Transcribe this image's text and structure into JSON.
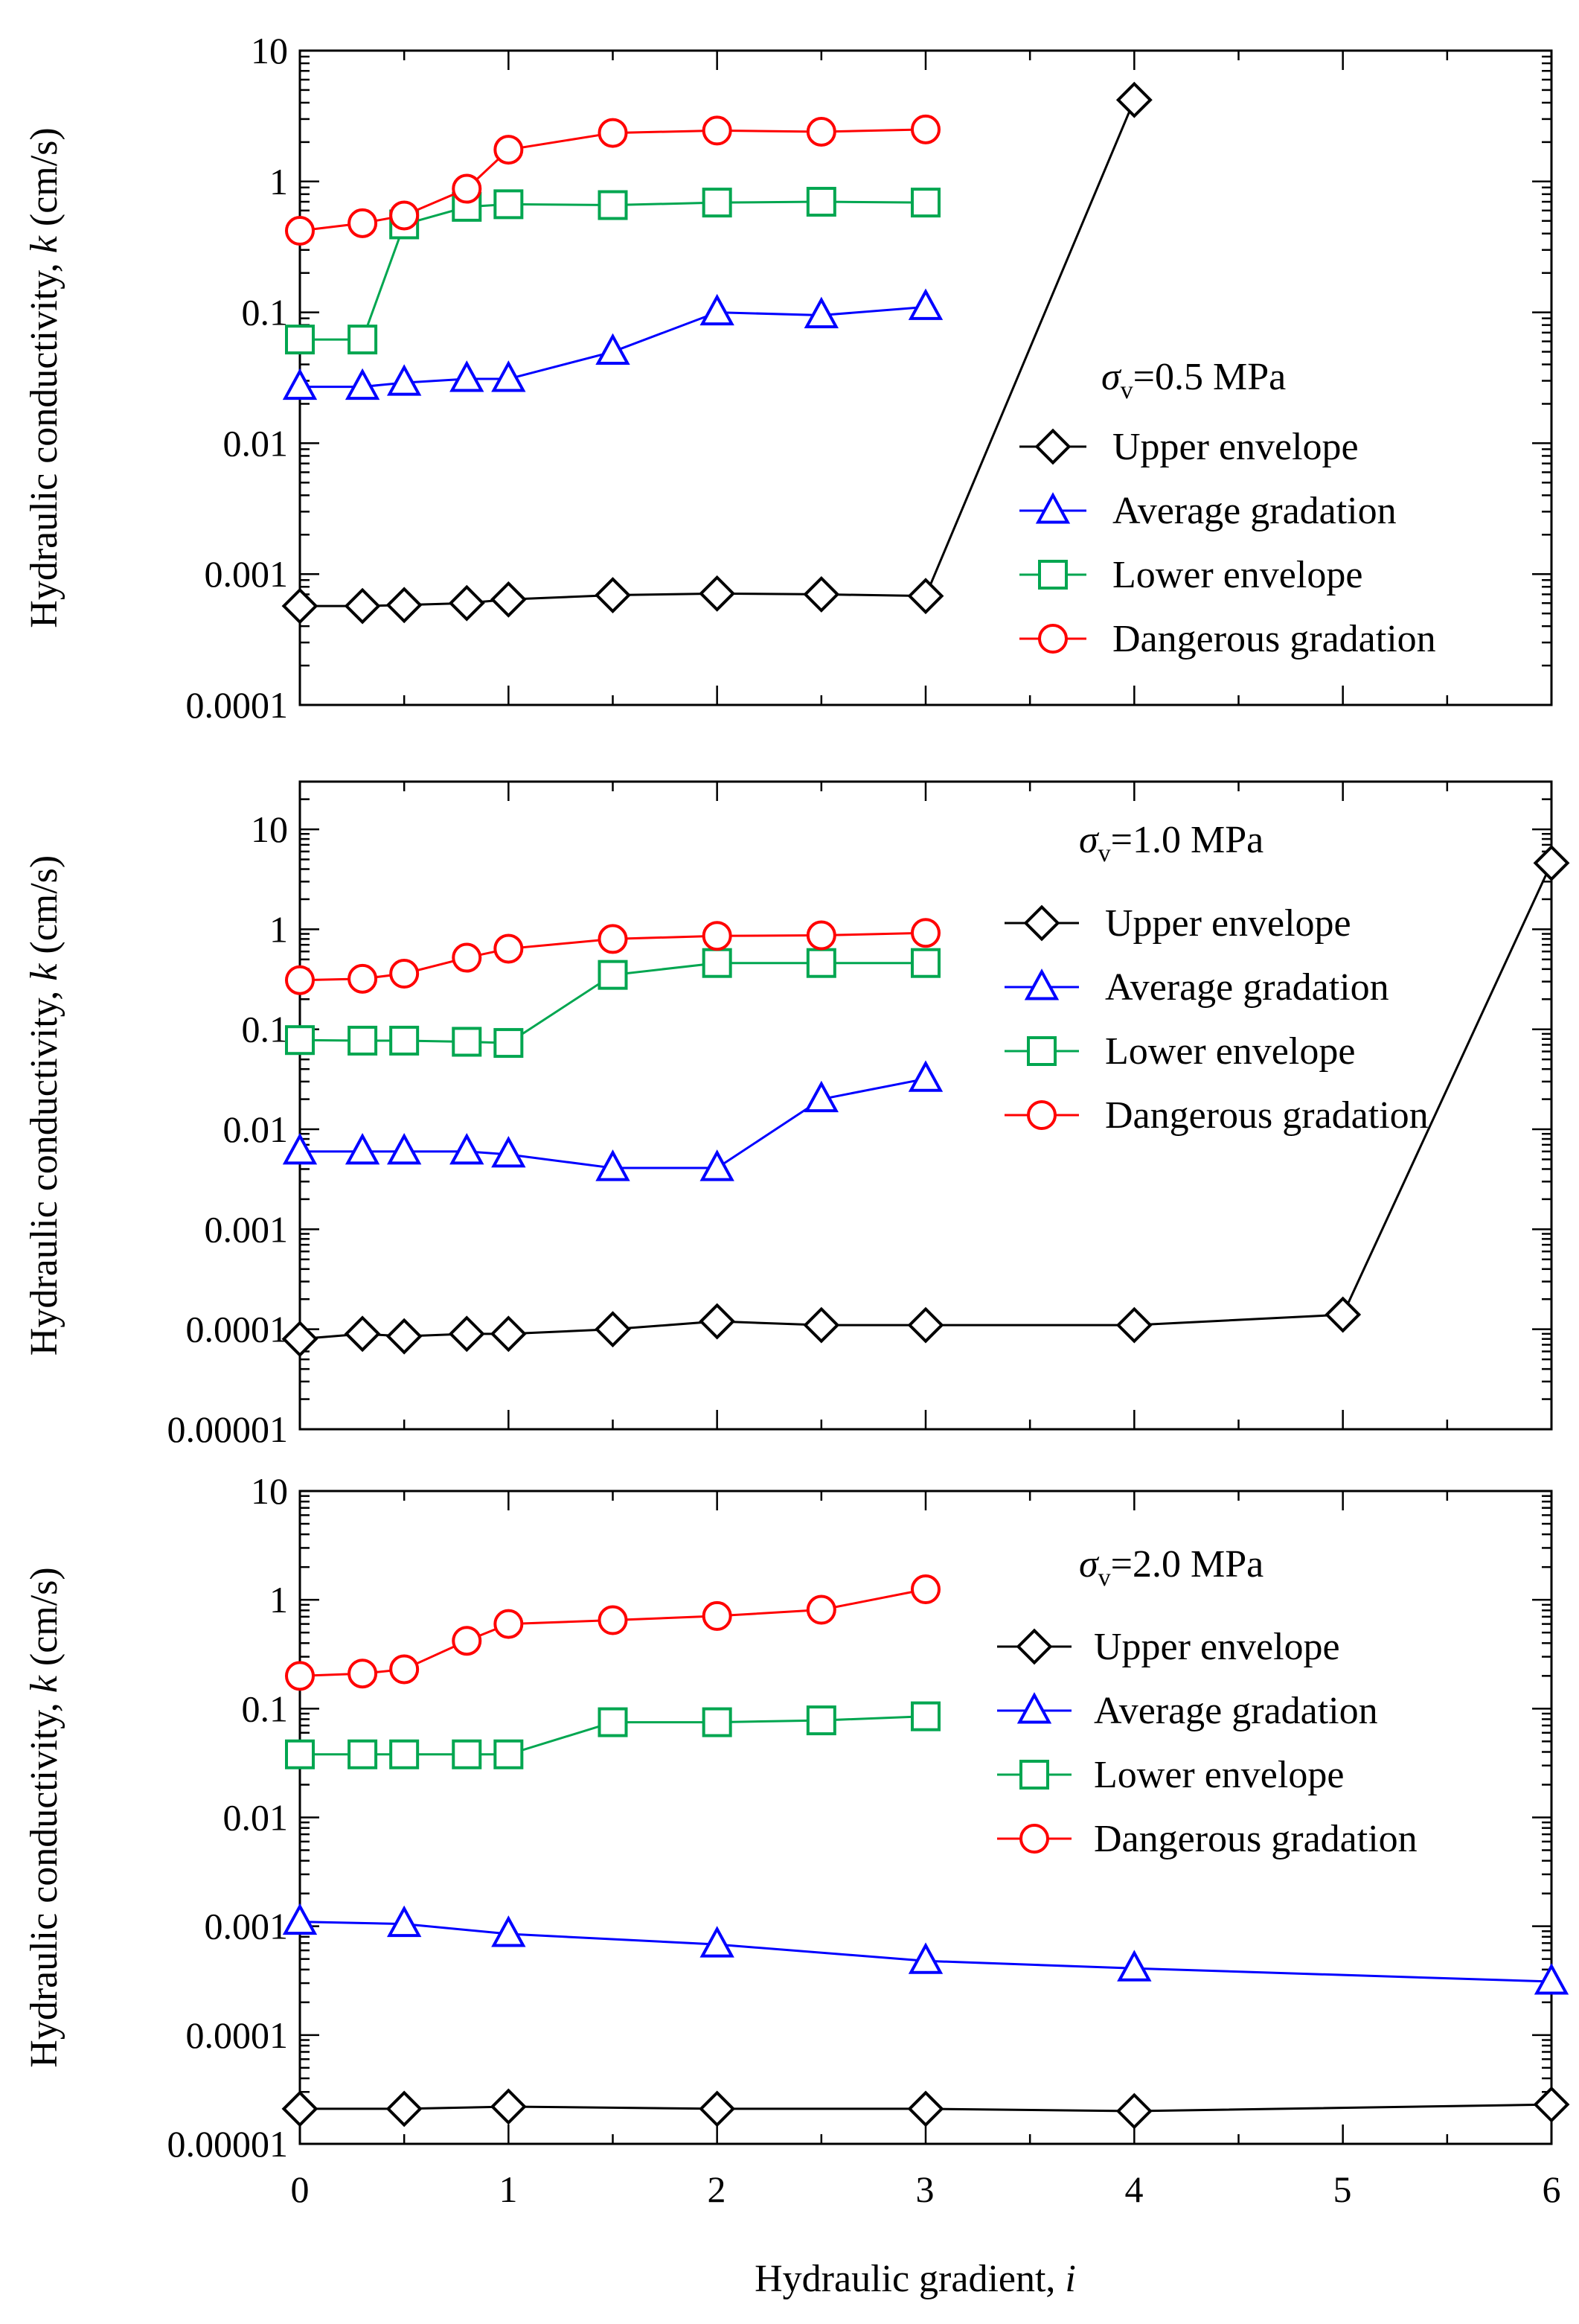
{
  "x_axis": {
    "label_prefix": "Hydraulic gradient, ",
    "label_var": "i",
    "ticks": [
      "0",
      "1",
      "2",
      "3",
      "4",
      "5",
      "6"
    ]
  },
  "legend_labels": {
    "upper": "Upper envelope",
    "average": "Average gradation",
    "lower": "Lower envelope",
    "dangerous": "Dangerous gradation"
  },
  "series_styles": {
    "upper": {
      "color": "#000000",
      "marker": "diamond"
    },
    "average": {
      "color": "#0000ff",
      "marker": "triangle"
    },
    "lower": {
      "color": "#00a650",
      "marker": "square"
    },
    "dangerous": {
      "color": "#ff0000",
      "marker": "circle"
    }
  },
  "chart_data": [
    {
      "type": "line",
      "title": "σv=0.5 MPa",
      "stress_label": "=0.5 MPa",
      "ylabel": "Hydraulic conductivity, k (cm/s)",
      "xlabel": "Hydraulic gradient, i",
      "xlim": [
        0,
        6
      ],
      "ylim": [
        0.0001,
        10
      ],
      "yscale": "log",
      "ytick_labels": [
        "0.0001",
        "0.001",
        "0.01",
        "0.1",
        "1",
        "10"
      ],
      "legend": "right",
      "series": [
        {
          "key": "upper",
          "name": "Upper envelope",
          "x": [
            0,
            0.3,
            0.5,
            0.8,
            1,
            1.5,
            2,
            2.5,
            3,
            4
          ],
          "y": [
            0.00057,
            0.00057,
            0.00058,
            0.0006,
            0.00064,
            0.00069,
            0.00071,
            0.0007,
            0.00068,
            4.2
          ]
        },
        {
          "key": "average",
          "name": "Average gradation",
          "x": [
            0,
            0.3,
            0.5,
            0.8,
            1,
            1.5,
            2,
            2.5,
            3
          ],
          "y": [
            0.027,
            0.027,
            0.029,
            0.031,
            0.031,
            0.05,
            0.1,
            0.095,
            0.11
          ]
        },
        {
          "key": "lower",
          "name": "Lower envelope",
          "x": [
            0,
            0.3,
            0.5,
            0.8,
            1,
            1.5,
            2,
            2.5,
            3
          ],
          "y": [
            0.062,
            0.062,
            0.47,
            0.64,
            0.67,
            0.66,
            0.69,
            0.7,
            0.69
          ]
        },
        {
          "key": "dangerous",
          "name": "Dangerous gradation",
          "x": [
            0,
            0.3,
            0.5,
            0.8,
            1,
            1.5,
            2,
            2.5,
            3
          ],
          "y": [
            0.42,
            0.48,
            0.55,
            0.88,
            1.75,
            2.35,
            2.45,
            2.4,
            2.5
          ]
        }
      ]
    },
    {
      "type": "line",
      "title": "σv=1.0 MPa",
      "stress_label": "=1.0 MPa",
      "ylabel": "Hydraulic conductivity, k (cm/s)",
      "xlabel": "Hydraulic gradient, i",
      "xlim": [
        0,
        6
      ],
      "ylim": [
        1e-05,
        30
      ],
      "yscale": "log",
      "ytick_labels": [
        "0.00001",
        "0.0001",
        "0.001",
        "0.01",
        "0.1",
        "1",
        "10"
      ],
      "legend": "top-right",
      "series": [
        {
          "key": "upper",
          "name": "Upper envelope",
          "x": [
            0,
            0.3,
            0.5,
            0.8,
            1,
            1.5,
            2,
            2.5,
            3,
            4,
            5,
            6
          ],
          "y": [
            8e-05,
            9e-05,
            8.5e-05,
            9e-05,
            9e-05,
            0.0001,
            0.00012,
            0.00011,
            0.00011,
            0.00011,
            0.00014,
            4.6
          ]
        },
        {
          "key": "average",
          "name": "Average gradation",
          "x": [
            0,
            0.3,
            0.5,
            0.8,
            1,
            1.5,
            2,
            2.5,
            3
          ],
          "y": [
            0.006,
            0.006,
            0.006,
            0.006,
            0.0056,
            0.0041,
            0.0041,
            0.02,
            0.032
          ]
        },
        {
          "key": "lower",
          "name": "Lower envelope",
          "x": [
            0,
            0.3,
            0.5,
            0.8,
            1,
            1.5,
            2,
            2.5,
            3
          ],
          "y": [
            0.078,
            0.077,
            0.077,
            0.075,
            0.073,
            0.35,
            0.46,
            0.46,
            0.46
          ]
        },
        {
          "key": "dangerous",
          "name": "Dangerous gradation",
          "x": [
            0,
            0.3,
            0.5,
            0.8,
            1,
            1.5,
            2,
            2.5,
            3
          ],
          "y": [
            0.31,
            0.32,
            0.36,
            0.52,
            0.64,
            0.8,
            0.86,
            0.87,
            0.92
          ]
        }
      ]
    },
    {
      "type": "line",
      "title": "σv=2.0 MPa",
      "stress_label": "=2.0 MPa",
      "ylabel": "Hydraulic conductivity, k (cm/s)",
      "xlabel": "Hydraulic gradient, i",
      "xlim": [
        0,
        6
      ],
      "ylim": [
        1e-05,
        10
      ],
      "yscale": "log",
      "ytick_labels": [
        "0.00001",
        "0.0001",
        "0.001",
        "0.01",
        "0.1",
        "1",
        "10"
      ],
      "legend": "right",
      "series": [
        {
          "key": "upper",
          "name": "Upper envelope",
          "x": [
            0,
            0.5,
            1,
            2,
            3,
            4,
            6
          ],
          "y": [
            2.1e-05,
            2.1e-05,
            2.2e-05,
            2.1e-05,
            2.1e-05,
            2e-05,
            2.3e-05
          ]
        },
        {
          "key": "average",
          "name": "Average gradation",
          "x": [
            0,
            0.5,
            1,
            2,
            3,
            4,
            6
          ],
          "y": [
            0.0011,
            0.00105,
            0.00085,
            0.00068,
            0.00048,
            0.00041,
            0.00031
          ]
        },
        {
          "key": "lower",
          "name": "Lower envelope",
          "x": [
            0,
            0.3,
            0.5,
            0.8,
            1,
            1.5,
            2,
            2.5,
            3
          ],
          "y": [
            0.038,
            0.038,
            0.038,
            0.038,
            0.038,
            0.075,
            0.075,
            0.078,
            0.085
          ]
        },
        {
          "key": "dangerous",
          "name": "Dangerous gradation",
          "x": [
            0,
            0.3,
            0.5,
            0.8,
            1,
            1.5,
            2,
            2.5,
            3
          ],
          "y": [
            0.2,
            0.21,
            0.23,
            0.42,
            0.6,
            0.65,
            0.71,
            0.81,
            1.25
          ]
        }
      ]
    }
  ]
}
